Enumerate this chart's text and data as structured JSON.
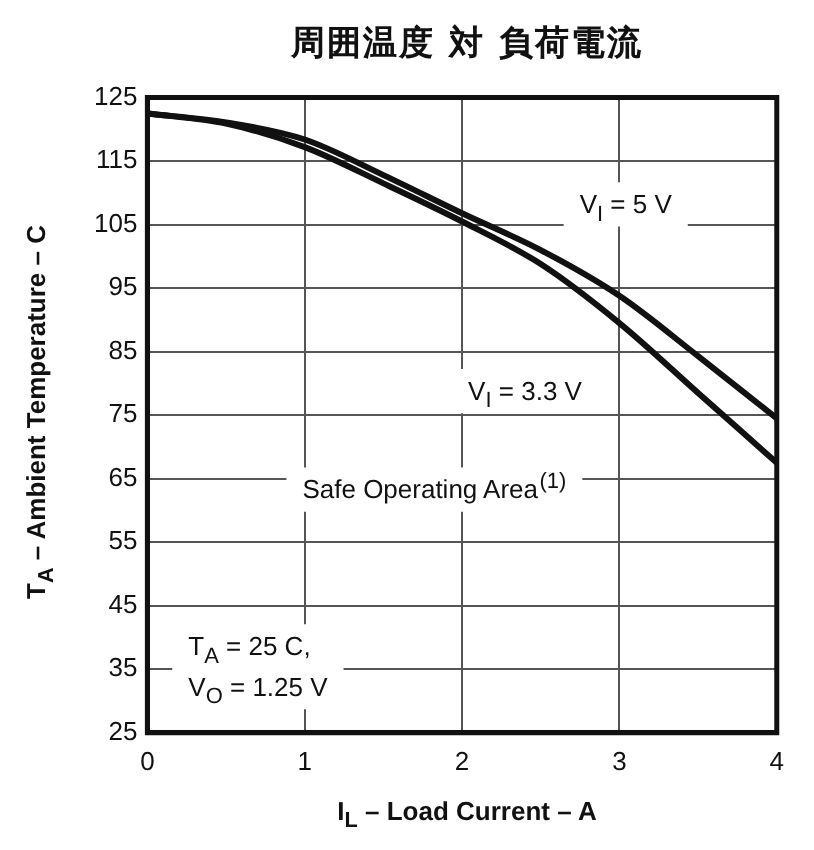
{
  "chart_data": {
    "type": "line",
    "title": "周囲温度 対 負荷電流",
    "xlabel": "I$_{L}$ – Load Current – A",
    "ylabel": "T$_{A}$ – Ambient Temperature – C",
    "x": [
      0,
      0.5,
      1,
      1.5,
      2,
      2.5,
      3,
      3.5,
      4
    ],
    "series": [
      {
        "name": "V$_{I}$ = 5 V",
        "color": "#111111",
        "values": [
          122.5,
          121.1,
          118.4,
          112.8,
          106.8,
          101,
          93.8,
          84.3,
          74.5
        ]
      },
      {
        "name": "V$_{I}$ = 3.3 V",
        "color": "#111111",
        "values": [
          122.5,
          120.9,
          117.2,
          111.5,
          105.5,
          98.8,
          89.5,
          78.5,
          67.5
        ]
      }
    ],
    "xlim": [
      0,
      4
    ],
    "xticks": [
      0,
      1,
      2,
      3,
      4
    ],
    "ylim": [
      25,
      125
    ],
    "yticks": [
      25,
      35,
      45,
      55,
      65,
      75,
      85,
      95,
      105,
      115,
      125
    ],
    "grid": true,
    "legend": false,
    "marker": "none",
    "annotations": [
      "Safe Operating Area$^{(1)}$",
      "T$_{A}$ = 25 C,",
      "V$_{O}$ = 1.25 V"
    ]
  }
}
